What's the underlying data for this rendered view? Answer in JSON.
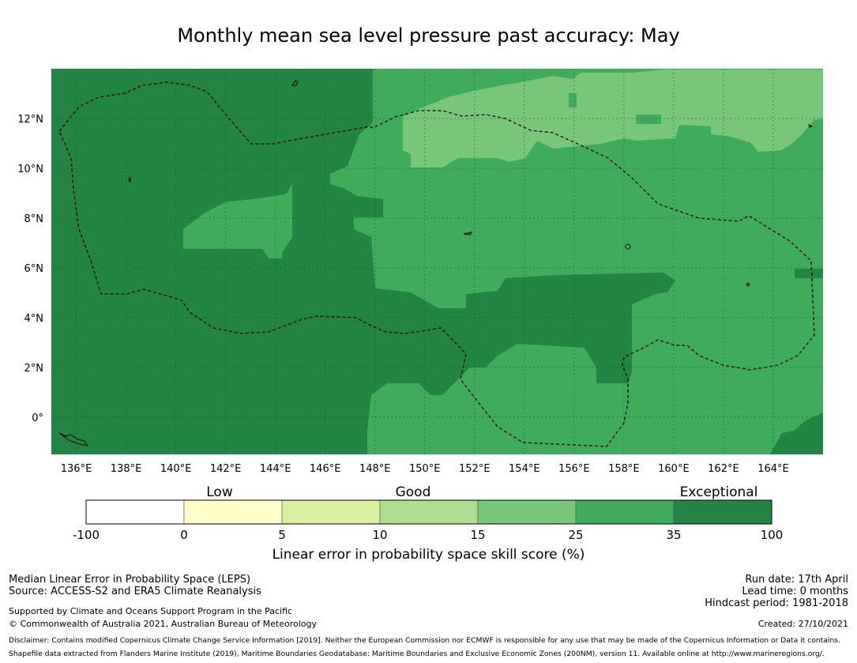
{
  "title": "Monthly mean sea level pressure past accuracy: May",
  "map": {
    "lon_range": [
      135,
      166
    ],
    "lat_range": [
      -1.5,
      14
    ],
    "x_ticks": [
      "136°E",
      "138°E",
      "140°E",
      "142°E",
      "144°E",
      "146°E",
      "148°E",
      "150°E",
      "152°E",
      "154°E",
      "156°E",
      "158°E",
      "160°E",
      "162°E",
      "164°E"
    ],
    "x_tick_values": [
      136,
      138,
      140,
      142,
      144,
      146,
      148,
      150,
      152,
      154,
      156,
      158,
      160,
      162,
      164
    ],
    "y_ticks": [
      "0°",
      "2°N",
      "4°N",
      "6°N",
      "8°N",
      "10°N",
      "12°N"
    ],
    "y_tick_values": [
      0,
      2,
      4,
      6,
      8,
      10,
      12
    ],
    "colors": {
      "exceptional": "#238443",
      "good_high": "#41ab5d",
      "good": "#78c679",
      "grid": "#1a5e30",
      "boundary": "#000000"
    }
  },
  "colorbar": {
    "categories": [
      "Low",
      "Good",
      "Exceptional"
    ],
    "bounds": [
      "-100",
      "0",
      "5",
      "10",
      "15",
      "25",
      "35",
      "100"
    ],
    "colors": [
      "#ffffff",
      "#ffffcc",
      "#d9f0a3",
      "#addd8e",
      "#78c679",
      "#41ab5d",
      "#238443"
    ],
    "label": "Linear error in probability space skill score (%)"
  },
  "footer": {
    "left1": "Median Linear Error in Probability Space (LEPS)",
    "left2": "Source: ACCESS-S2 and ERA5 Climate Reanalysis",
    "left3": "Supported by Climate and Oceans Support Program in the Pacific",
    "left4": "© Commonwealth of Australia 2021, Australian Bureau of Meteorology",
    "run_date": "Run date: 17th April",
    "lead_time": "Lead time: 0 months",
    "hindcast": "Hindcast period: 1981-2018",
    "created": "Created: 27/10/2021",
    "disclaimer": "Disclaimer: Contains modified Copernicus Climate Change Service Information [2019]. Neither the European Commission nor ECMWF is responsible for any use that may be made of the Copernicus Information or Data it contains.",
    "shapefile": "Shapefile data extracted from Flanders Marine Institute (2019), Maritime Boundaries Geodatabase: Maritime Boundaries and Exclusive Economic Zones (200NM), version 11. Available online at http://www.marineregions.org/."
  }
}
